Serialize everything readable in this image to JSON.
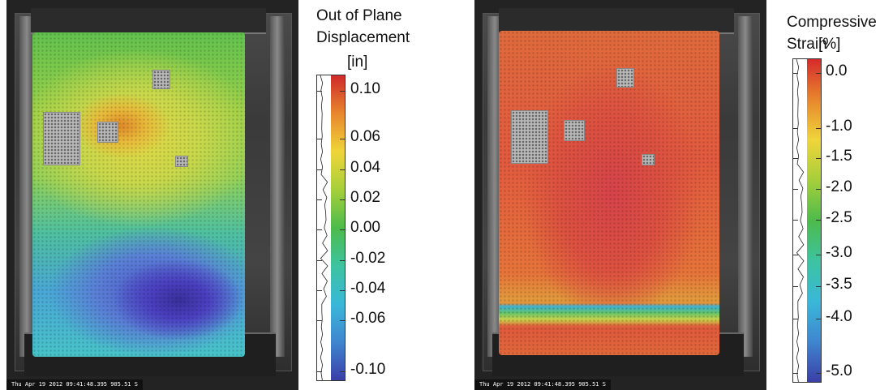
{
  "left_panel": {
    "timestamp": "Thu Apr 19 2012 09:41:48.395 905.51 S",
    "colorbar": {
      "title_line1": "Out of Plane",
      "title_line2": "Displacement",
      "unit": "[in]",
      "labels": [
        "0.10",
        "0.06",
        "0.04",
        "0.02",
        "0.00",
        "-0.02",
        "-0.04",
        "-0.06",
        "-0.10"
      ],
      "colors": [
        "#cf2a2a",
        "#e7862d",
        "#f0d53a",
        "#a6cf3a",
        "#4dbb4b",
        "#3dc3a0",
        "#39b8d8",
        "#3f86cf",
        "#3a3fa8"
      ]
    }
  },
  "right_panel": {
    "timestamp": "Thu Apr 19 2012 09:41:48.395 905.51 S",
    "colorbar": {
      "title_line1": "Compressive",
      "title_line2": "Strain",
      "unit": "[%]",
      "labels": [
        "0.0",
        "-1.0",
        "-1.5",
        "-2.0",
        "-2.5",
        "-3.0",
        "-3.5",
        "-4.0",
        "-5.0"
      ],
      "colors": [
        "#d62a2a",
        "#e7862d",
        "#f0d53a",
        "#a6cf3a",
        "#4dbb4b",
        "#3dc3a0",
        "#39b8d8",
        "#3f86cf",
        "#3a3fa8"
      ]
    }
  }
}
